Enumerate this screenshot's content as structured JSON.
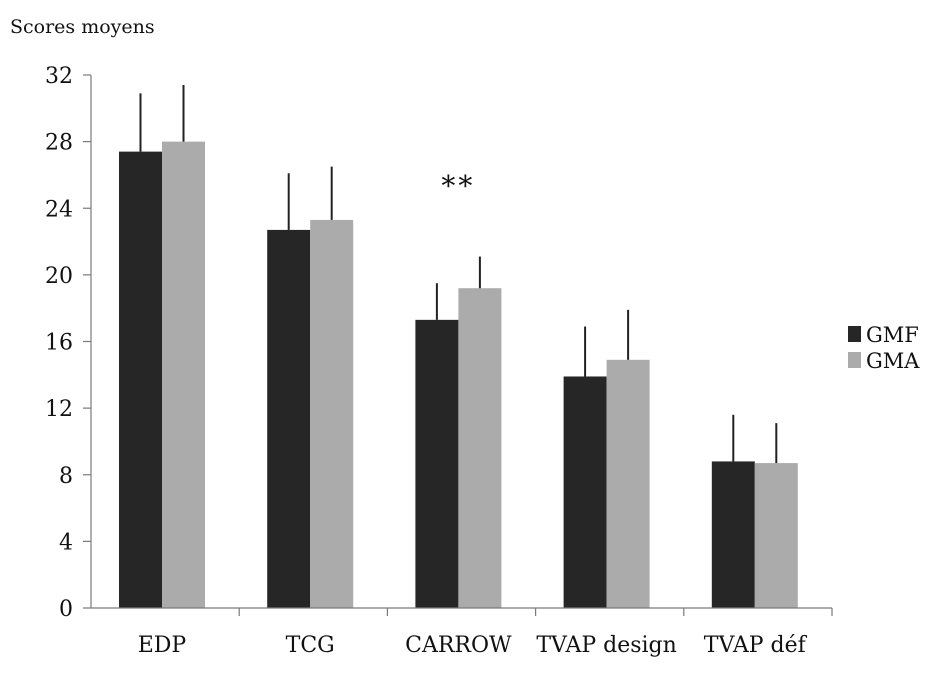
{
  "chart_data": {
    "type": "bar",
    "ylabel": "Scores moyens",
    "xlabel": "",
    "title": "",
    "ylim": [
      0,
      32
    ],
    "yticks": [
      0,
      4,
      8,
      12,
      16,
      20,
      24,
      28,
      32
    ],
    "categories": [
      "EDP",
      "TCG",
      "CARROW",
      "TVAP design",
      "TVAP déf"
    ],
    "series": [
      {
        "name": "GMF",
        "color": "#262626",
        "values": [
          27.4,
          22.7,
          17.3,
          13.9,
          8.8
        ],
        "errors": [
          3.5,
          3.4,
          2.2,
          3.0,
          2.8
        ]
      },
      {
        "name": "GMA",
        "color": "#ababab",
        "values": [
          28.0,
          23.3,
          19.2,
          14.9,
          8.7
        ],
        "errors": [
          3.4,
          3.2,
          1.9,
          3.0,
          2.4
        ]
      }
    ],
    "annotations": [
      {
        "text": "**",
        "category": "CARROW",
        "y": 25.5
      }
    ],
    "legend": {
      "position": "right"
    },
    "grid": false
  }
}
